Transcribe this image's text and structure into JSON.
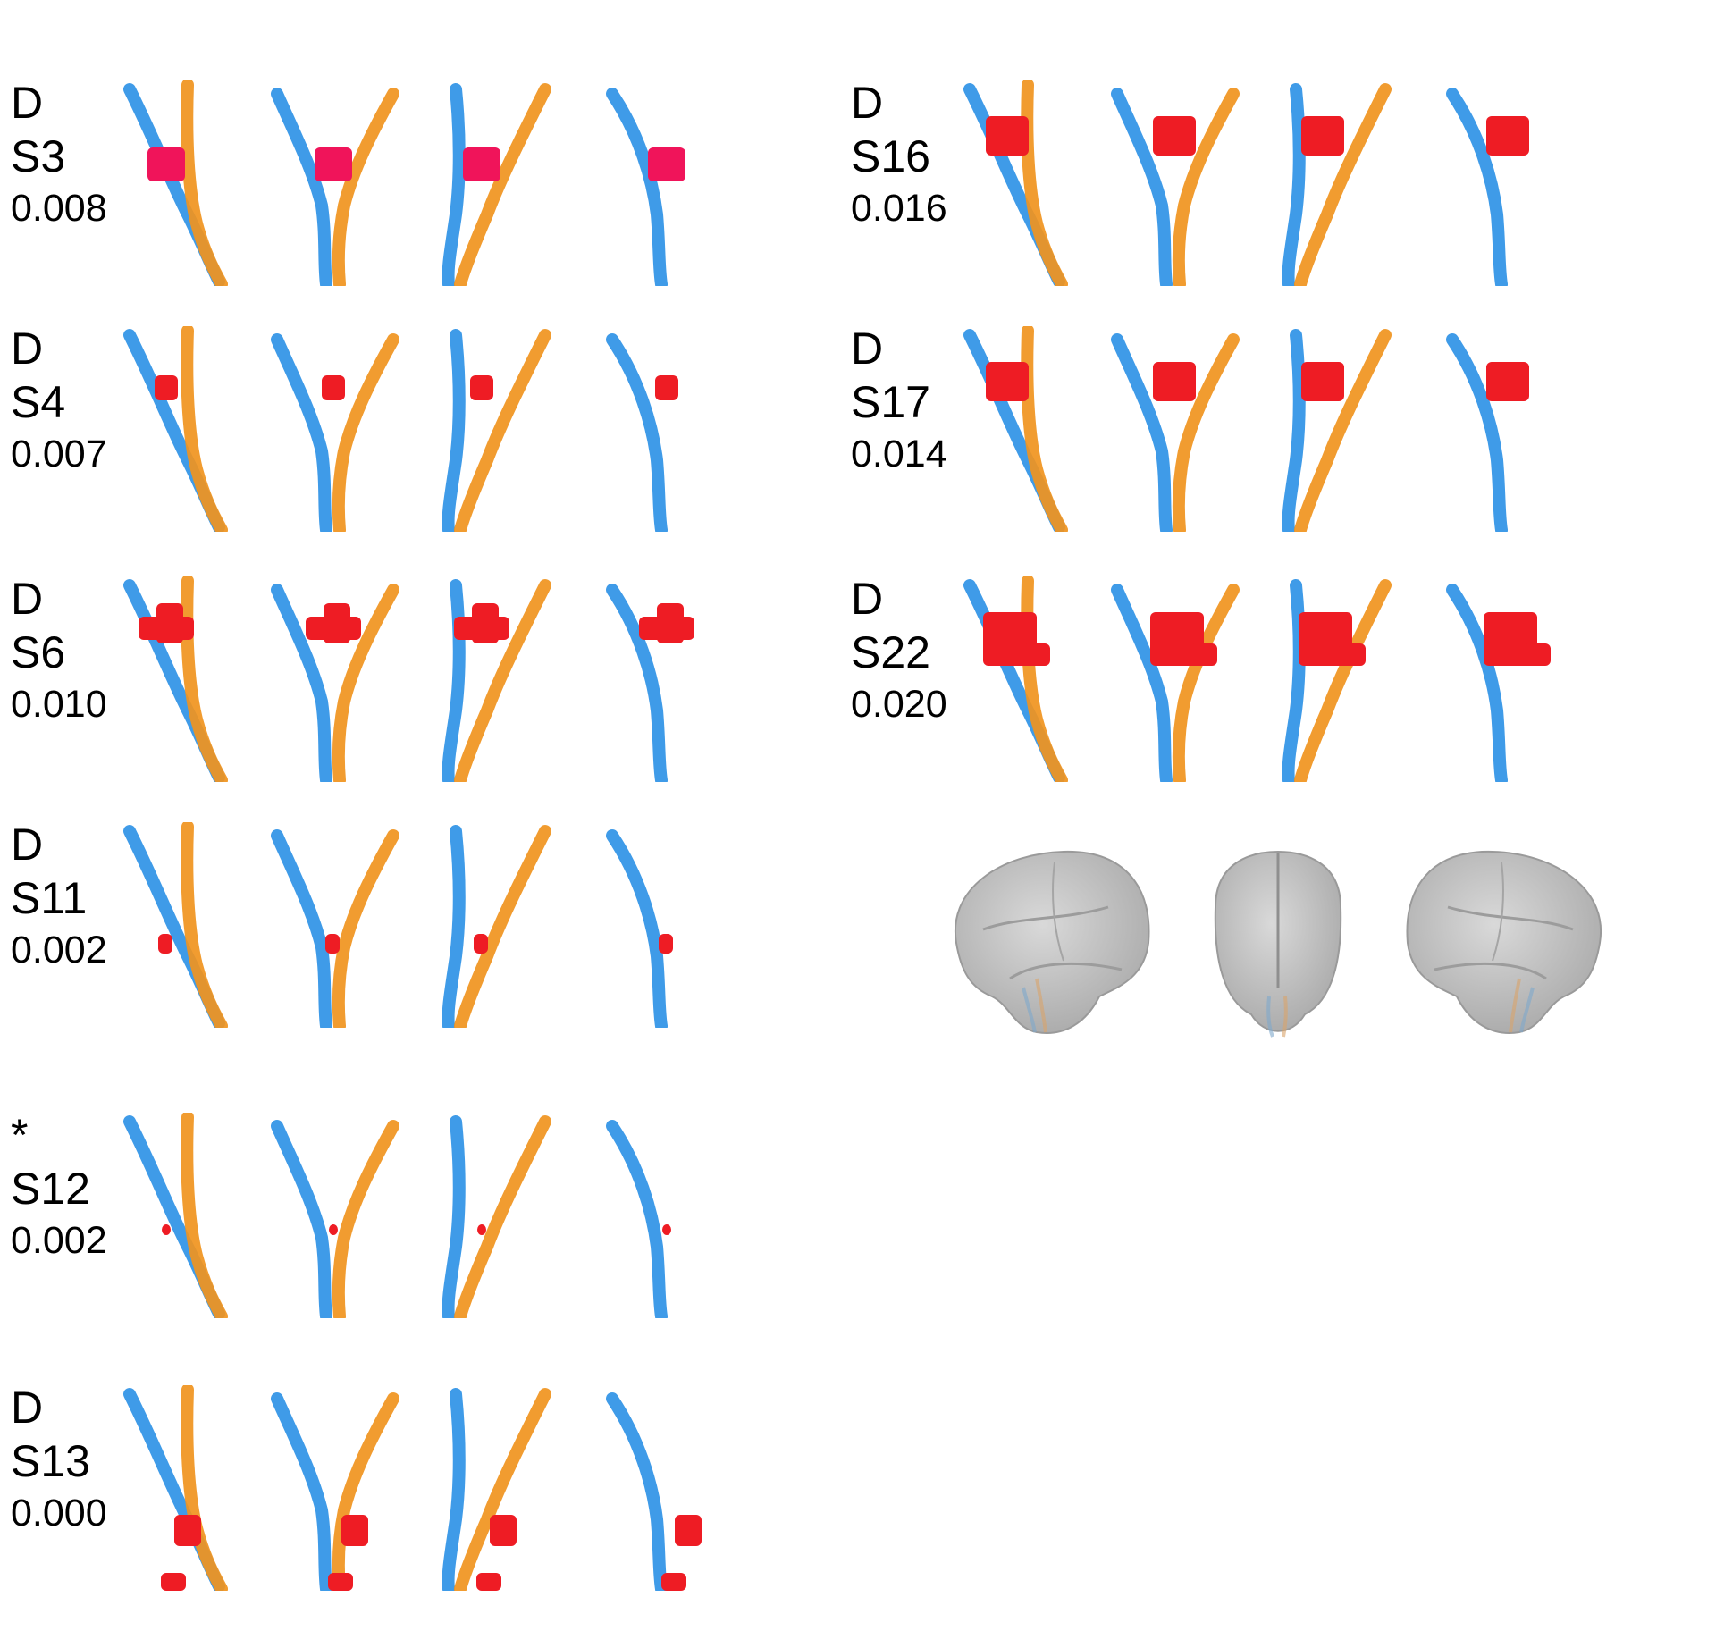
{
  "colors": {
    "tract_a": "#2f93e6",
    "tract_b": "#f0941e",
    "lesion": "#ee1c24",
    "lesion_pink": "#f0145a",
    "brain": "#c9c9c9"
  },
  "panels": [
    {
      "line1": "D",
      "subject": "S3",
      "value": "0.008",
      "lesion": "blob-mid-pink",
      "col": 0,
      "row": 0
    },
    {
      "line1": "D",
      "subject": "S4",
      "value": "0.007",
      "lesion": "small-mid",
      "col": 0,
      "row": 1
    },
    {
      "line1": "D",
      "subject": "S6",
      "value": "0.010",
      "lesion": "wide-mid",
      "col": 0,
      "row": 2
    },
    {
      "line1": "D",
      "subject": "S11",
      "value": "0.002",
      "lesion": "tiny-low",
      "col": 0,
      "row": 3
    },
    {
      "line1": "*",
      "subject": "S12",
      "value": "0.002",
      "lesion": "speck-low",
      "col": 0,
      "row": 4
    },
    {
      "line1": "D",
      "subject": "S13",
      "value": "0.000",
      "lesion": "split-bottom",
      "col": 0,
      "row": 5
    },
    {
      "line1": "D",
      "subject": "S16",
      "value": "0.016",
      "lesion": "large-mid",
      "col": 1,
      "row": 0
    },
    {
      "line1": "D",
      "subject": "S17",
      "value": "0.014",
      "lesion": "large-mid",
      "col": 1,
      "row": 1
    },
    {
      "line1": "D",
      "subject": "S22",
      "value": "0.020",
      "lesion": "xlarge-mid",
      "col": 1,
      "row": 2
    }
  ],
  "brain_views": [
    "left-lateral-brain",
    "posterior-brain",
    "right-lateral-brain"
  ]
}
